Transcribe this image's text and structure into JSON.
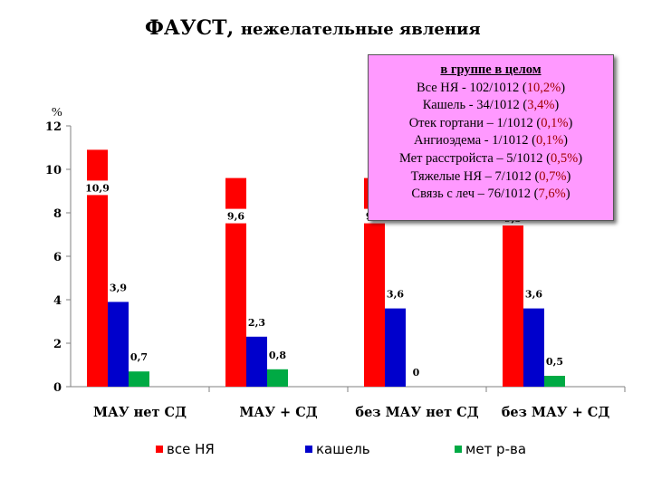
{
  "title": {
    "main": "ФАУСТ,",
    "sub": "нежелательные явления"
  },
  "chart_data": {
    "type": "bar",
    "ylabel": "%",
    "ylim": [
      0,
      12
    ],
    "yticks": [
      "0",
      "2",
      "4",
      "6",
      "8",
      "10",
      "12"
    ],
    "categories": [
      "МАУ нет СД",
      "МАУ + СД",
      "без МАУ нет СД",
      "без МАУ + СД"
    ],
    "series": [
      {
        "name": "все НЯ",
        "color": "#ff0000",
        "values": [
          10.9,
          9.6,
          9.6,
          9.5
        ],
        "labels": [
          "10,9",
          "9,6",
          "9,6",
          "9,5"
        ]
      },
      {
        "name": "кашель",
        "color": "#0000cc",
        "values": [
          3.9,
          2.3,
          3.6,
          3.6
        ],
        "labels": [
          "3,9",
          "2,3",
          "3,6",
          "3,6"
        ]
      },
      {
        "name": "мет р-ва",
        "color": "#00aa44",
        "values": [
          0.7,
          0.8,
          0,
          0.5
        ],
        "labels": [
          "0,7",
          "0,8",
          "0",
          "0,5"
        ]
      }
    ],
    "legend_position": "bottom",
    "grid": false
  },
  "info_box": {
    "header": "в группе в целом",
    "lines": [
      {
        "text": "Все НЯ - 102/1012 (",
        "pct": "10,2%",
        "end": ")"
      },
      {
        "text": "Кашель - 34/1012 (",
        "pct": "3,4%",
        "end": ")"
      },
      {
        "text": "Отек гортани – 1/1012 (",
        "pct": "0,1%",
        "end": ")"
      },
      {
        "text": "Ангиоэдема - 1/1012 (",
        "pct": "0,1%",
        "end": ")"
      },
      {
        "text": "Мет расстройста – 5/1012 (",
        "pct": "0,5%",
        "end": ")"
      },
      {
        "text": "Тяжелые НЯ – 7/1012 (",
        "pct": "0,7%",
        "end": ")"
      },
      {
        "text": "Связь с леч – 76/1012 (",
        "pct": "7,6%",
        "end": ")"
      }
    ],
    "background": "#ff99ff"
  }
}
